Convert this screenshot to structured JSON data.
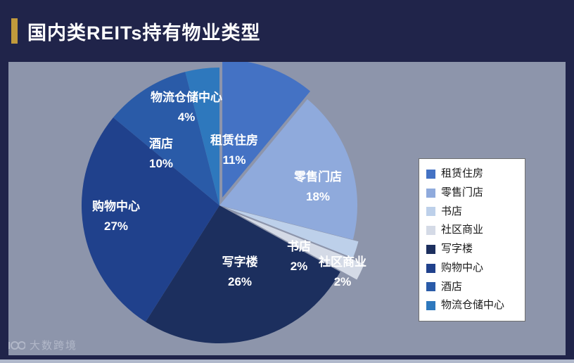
{
  "header": {
    "title": "国内类REITs持有物业类型"
  },
  "watermark": {
    "text": "大数跨境"
  },
  "colors": {
    "background": "#20244a",
    "panel": "#8d95ab",
    "accent_gold": "#c19a3c",
    "title_text": "#ffffff",
    "legend_background": "#ffffff"
  },
  "chart_data": {
    "type": "pie",
    "title": "国内类REITs持有物业类型",
    "categories": [
      "租赁住房",
      "零售门店",
      "书店",
      "社区商业",
      "写字楼",
      "购物中心",
      "酒店",
      "物流仓储中心"
    ],
    "values": [
      11,
      18,
      2,
      2,
      26,
      27,
      10,
      4
    ],
    "unit": "%",
    "colors": [
      "#4472c4",
      "#8faadc",
      "#bdd0ea",
      "#d4dae6",
      "#1c2f5e",
      "#20418c",
      "#2a5ba8",
      "#2e78bd"
    ],
    "slice_labels": [
      "租赁住房 11%",
      "零售门店 18%",
      "书店 2%",
      "社区商业 2%",
      "写字楼 26%",
      "购物中心 27%",
      "酒店 10%",
      "物流仓储中心 4%"
    ],
    "legend_position": "right",
    "legend_items": [
      "租赁住房",
      "零售门店",
      "书店",
      "社区商业",
      "写字楼",
      "购物中心",
      "酒店",
      "物流仓储中心"
    ],
    "start_angle_deg": 0,
    "direction": "clockwise"
  }
}
